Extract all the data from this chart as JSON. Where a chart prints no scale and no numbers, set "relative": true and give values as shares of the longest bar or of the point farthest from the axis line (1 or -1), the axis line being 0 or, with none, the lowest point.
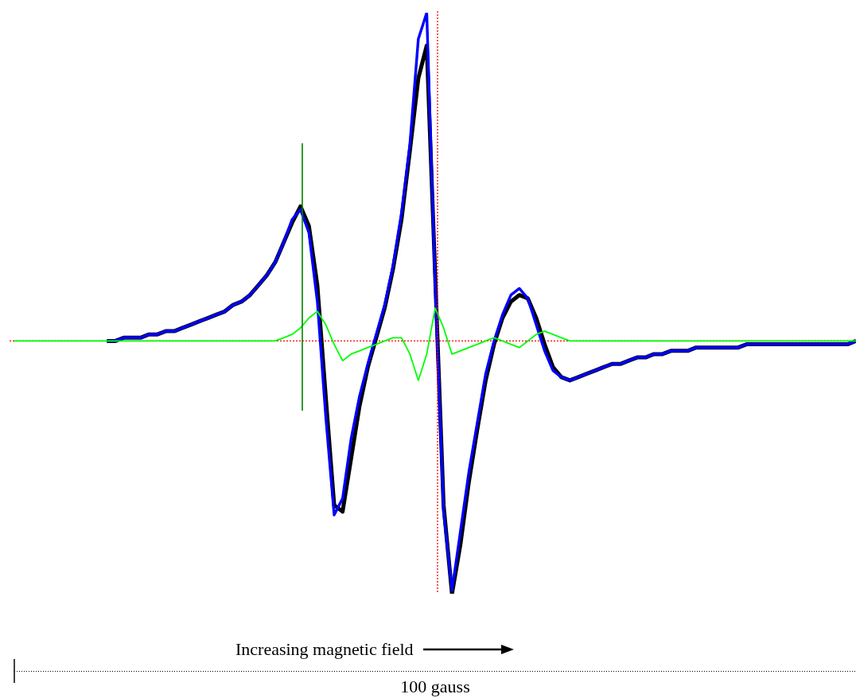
{
  "chart_data": {
    "type": "line",
    "relative": true,
    "xlabel": "100 gauss",
    "annotations": [
      "Increasing magnetic field"
    ],
    "marker": "none",
    "line_style": "solid",
    "categories": [
      null,
      null,
      null,
      null,
      null,
      null,
      null,
      null,
      null,
      null,
      null,
      null,
      null,
      null,
      null,
      null,
      null,
      null,
      null,
      null,
      null,
      null,
      null,
      null,
      null,
      null,
      null,
      null,
      null,
      null,
      null,
      null,
      null,
      null,
      null,
      null,
      null,
      null,
      null,
      null,
      null,
      null,
      null,
      null,
      null,
      null,
      null,
      null,
      null,
      null,
      null,
      null,
      null,
      null,
      null,
      null,
      null,
      null,
      null,
      null,
      null,
      null,
      null,
      null,
      null,
      null,
      null,
      null,
      null,
      null,
      null,
      null,
      null,
      null,
      null,
      null,
      null,
      null,
      null,
      null,
      null,
      null,
      null,
      null,
      null,
      null,
      null,
      null,
      null,
      null,
      null,
      null,
      null,
      null,
      null,
      null,
      null,
      null,
      null,
      null,
      null
    ],
    "series": [
      {
        "color": "#000000",
        "values": [
          null,
          null,
          null,
          null,
          null,
          null,
          null,
          null,
          null,
          null,
          null,
          0,
          0,
          0.01,
          0.01,
          0.01,
          0.02,
          0.02,
          0.03,
          0.03,
          0.04,
          0.05,
          0.06,
          0.07,
          0.08,
          0.09,
          0.11,
          0.12,
          0.14,
          0.17,
          0.2,
          0.24,
          0.3,
          0.36,
          0.41,
          0.35,
          0.17,
          -0.17,
          -0.5,
          -0.52,
          -0.36,
          -0.2,
          -0.08,
          0.01,
          0.1,
          0.22,
          0.37,
          0.58,
          0.8,
          0.9,
          0.2,
          -0.5,
          -0.77,
          -0.62,
          -0.43,
          -0.27,
          -0.12,
          -0.01,
          0.07,
          0.12,
          0.14,
          0.13,
          0.07,
          -0.01,
          -0.08,
          -0.11,
          -0.12,
          -0.11,
          -0.1,
          -0.09,
          -0.08,
          -0.07,
          -0.07,
          -0.06,
          -0.05,
          -0.05,
          -0.04,
          -0.04,
          -0.03,
          -0.03,
          -0.03,
          -0.02,
          -0.02,
          -0.02,
          -0.02,
          -0.02,
          -0.02,
          -0.01,
          -0.01,
          -0.01,
          -0.01,
          -0.01,
          -0.01,
          -0.01,
          -0.01,
          -0.01,
          -0.01,
          -0.01,
          -0.01,
          -0.01,
          0
        ]
      },
      {
        "color": "#0000ff",
        "values": [
          null,
          null,
          null,
          null,
          null,
          null,
          null,
          null,
          null,
          null,
          null,
          0,
          0,
          0.01,
          0.01,
          0.01,
          0.02,
          0.02,
          0.03,
          0.03,
          0.04,
          0.05,
          0.06,
          0.07,
          0.08,
          0.09,
          0.11,
          0.12,
          0.14,
          0.17,
          0.2,
          0.24,
          0.3,
          0.37,
          0.4,
          0.33,
          0.12,
          -0.23,
          -0.53,
          -0.48,
          -0.3,
          -0.17,
          -0.07,
          0.02,
          0.11,
          0.23,
          0.39,
          0.6,
          0.92,
          1.0,
          0.17,
          -0.52,
          -0.76,
          -0.58,
          -0.4,
          -0.25,
          -0.1,
          0,
          0.08,
          0.14,
          0.16,
          0.13,
          0.05,
          -0.03,
          -0.09,
          -0.11,
          -0.12,
          -0.11,
          -0.1,
          -0.09,
          -0.08,
          -0.07,
          -0.07,
          -0.06,
          -0.05,
          -0.05,
          -0.04,
          -0.04,
          -0.03,
          -0.03,
          -0.03,
          -0.02,
          -0.02,
          -0.02,
          -0.02,
          -0.02,
          -0.02,
          -0.01,
          -0.01,
          -0.01,
          -0.01,
          -0.01,
          -0.01,
          -0.01,
          -0.01,
          -0.01,
          -0.01,
          -0.01,
          -0.01,
          -0.01,
          0
        ]
      },
      {
        "color": "#00ff00",
        "values": [
          0,
          0,
          0,
          0,
          0,
          0,
          0,
          0,
          0,
          0,
          0,
          0,
          0,
          0,
          0,
          0,
          0,
          0,
          0,
          0,
          0,
          0,
          0,
          0,
          0,
          0,
          0,
          0,
          0,
          0,
          0,
          0,
          0.01,
          0.02,
          0.04,
          0.07,
          0.09,
          0.05,
          -0.01,
          -0.06,
          -0.04,
          -0.03,
          -0.02,
          -0.01,
          0,
          0.01,
          0.01,
          -0.04,
          -0.12,
          -0.04,
          0.1,
          0.04,
          -0.04,
          -0.03,
          -0.02,
          -0.01,
          0,
          0.01,
          0,
          -0.01,
          -0.02,
          0,
          0.02,
          0.03,
          0.02,
          0.01,
          0,
          0,
          0,
          0,
          0,
          0,
          0,
          0,
          0,
          0,
          0,
          0,
          0,
          0,
          0,
          0,
          0,
          0,
          0,
          0,
          0,
          0,
          0,
          0,
          0,
          0,
          0,
          0,
          0,
          0,
          0,
          0,
          0,
          0,
          0
        ]
      }
    ],
    "ref_lines": [
      {
        "axis": "y",
        "value": 0,
        "color": "#ff0000",
        "line_style": "dotted"
      }
    ]
  }
}
